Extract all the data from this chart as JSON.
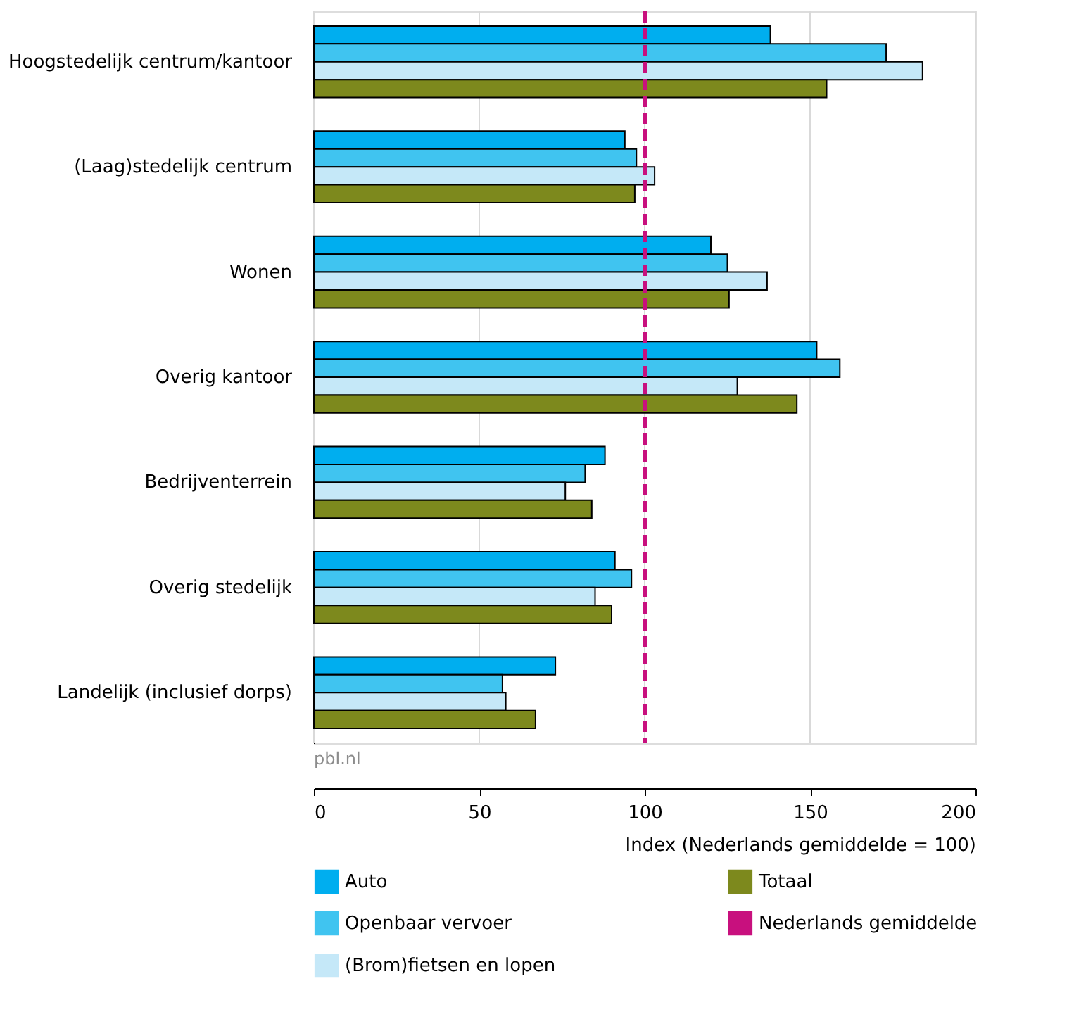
{
  "chart_data": {
    "type": "bar",
    "orientation": "horizontal",
    "xlabel": "Index (Nederlands gemiddelde = 100)",
    "categories": [
      "Hoogstedelijk centrum/kantoor",
      "(Laag)stedelijk centrum",
      "Wonen",
      "Overig kantoor",
      "Bedrijventerrein",
      "Overig stedelijk",
      "Landelijk (inclusief dorps)"
    ],
    "series": [
      {
        "name": "Auto",
        "color": "#00aeef",
        "values": [
          138,
          94,
          120,
          152,
          88,
          91,
          73
        ]
      },
      {
        "name": "Openbaar vervoer",
        "color": "#40c4f0",
        "values": [
          173,
          97.5,
          125,
          159,
          82,
          96,
          57
        ]
      },
      {
        "name": "(Brom)fietsen en lopen",
        "color": "#c5e8f8",
        "values": [
          184,
          103,
          137,
          128,
          76,
          85,
          58
        ]
      },
      {
        "name": "Totaal",
        "color": "#7d891d",
        "values": [
          155,
          97,
          125.5,
          146,
          84,
          90,
          67
        ]
      }
    ],
    "xlim": [
      0,
      200
    ],
    "xticks": [
      0,
      50,
      100,
      150,
      200
    ],
    "ref_lines": [
      {
        "axis": "x",
        "value": 100,
        "label": "Nederlands gemiddelde",
        "color": "#c8107e",
        "line_style": "dashed"
      }
    ],
    "annotations": [
      "pbl.nl"
    ],
    "grid": "x",
    "legend": "bottom left"
  }
}
